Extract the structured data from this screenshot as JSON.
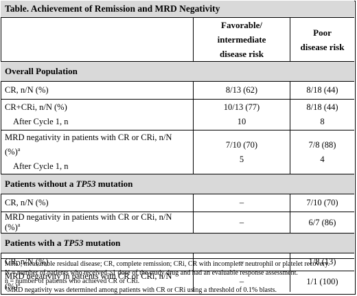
{
  "title": "Table. Achievement of Remission and MRD Negativity",
  "columns": {
    "col1_line1": "Favorable/ intermediate",
    "col1_line2": "disease risk",
    "col2_line1": "Poor",
    "col2_line2": "disease risk"
  },
  "sections": {
    "overall": {
      "label": "Overall Population",
      "rows": [
        {
          "label": "CR, n/N (%)",
          "fav": "8/13 (62)",
          "poor": "8/18 (44)"
        },
        {
          "label": "CR+CRi, n/N (%)",
          "fav": "10/13 (77)",
          "poor": "8/18 (44)",
          "sub_label": "After Cycle 1, n",
          "sub_fav": "10",
          "sub_poor": "8"
        },
        {
          "label": "MRD negativity in patients with CR or CRi, n/N (%)",
          "sup": "a",
          "fav": "7/10 (70)",
          "poor": "7/8 (88)",
          "sub_label": "After Cycle 1, n",
          "sub_fav": "5",
          "sub_poor": "4"
        }
      ]
    },
    "without_tp53": {
      "label_pre": "Patients without a ",
      "label_gene": "TP53",
      "label_post": " mutation",
      "rows": [
        {
          "label": "CR, n/N (%)",
          "fav": "–",
          "poor": "7/10 (70)"
        },
        {
          "label": "MRD negativity in patients with CR or CRi, n/N (%)",
          "sup": "a",
          "fav": "–",
          "poor": "6/7 (86)"
        }
      ]
    },
    "with_tp53": {
      "label_pre": "Patients with a ",
      "label_gene": "TP53",
      "label_post": " mutation",
      "rows": [
        {
          "label": "CR, n/N (%)",
          "fav": "–",
          "poor": "1/8 (13)"
        },
        {
          "label": "MRD negativity in patients with CR or CRi, n/N (%)",
          "sup": "a",
          "fav": "–",
          "poor": "1/1 (100)"
        }
      ]
    }
  },
  "footnotes": {
    "line1": "MRD, measurable residual disease; CR, complete remission; CRi, CR with incomplete neutrophil or platelet recovery.",
    "line2": "N = number of patients who received ≥1 dose of the study drug and had an evaluable response assessment.",
    "line3": "n = number of patients who achieved CR or CRi.",
    "line4_sup": "a",
    "line4": "MRD negativity was determined among patients with CR or CRi using a threshold of 0.1% blasts."
  }
}
